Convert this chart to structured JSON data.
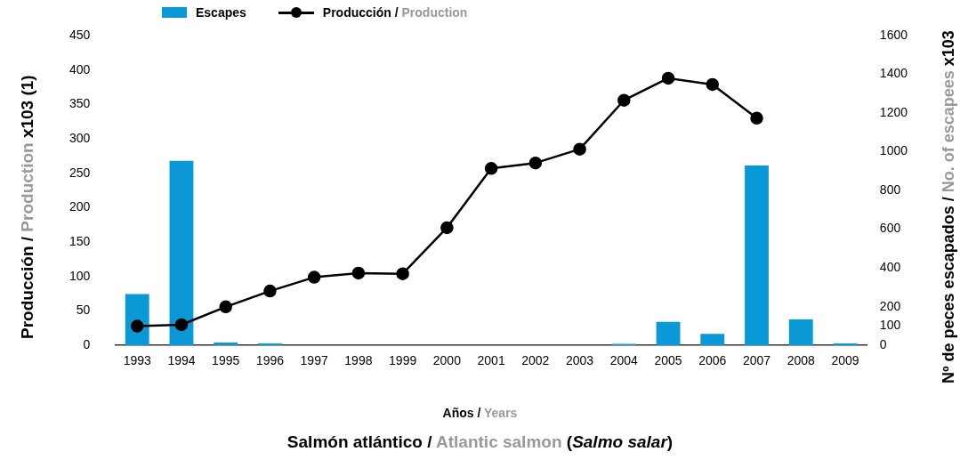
{
  "chart_data": {
    "type": "bar",
    "title": "Salmón atlántico / Atlantic salmon (Salmo salar)",
    "xlabel": "Años / Years",
    "ylabel": "Producción / Production x103 (1)",
    "y2label": "Nº de peces escapados / No. of escapees x103",
    "categories": [
      "1993",
      "1994",
      "1995",
      "1996",
      "1997",
      "1998",
      "1999",
      "2000",
      "2001",
      "2002",
      "2003",
      "2004",
      "2005",
      "2006",
      "2007",
      "2008",
      "2009"
    ],
    "series": [
      {
        "name": "Escapes",
        "axis": "y2",
        "color": "#0a98d6",
        "values": [
          265,
          953,
          15,
          10,
          0,
          0,
          0,
          0,
          0,
          0,
          0,
          8,
          122,
          60,
          929,
          134,
          10
        ]
      },
      {
        "name": "Producción / Production",
        "type": "line",
        "color": "#000000",
        "values": [
          28,
          30,
          56,
          79,
          99,
          105,
          104,
          171,
          257,
          265,
          285,
          356,
          388,
          379,
          330,
          null,
          null
        ]
      }
    ],
    "ylim": [
      0,
      450
    ],
    "yticks": [
      0,
      50,
      100,
      150,
      200,
      250,
      300,
      350,
      400,
      450
    ],
    "y2lim": [
      0,
      1600
    ],
    "y2ticks": [
      0,
      100,
      200,
      400,
      600,
      800,
      1000,
      1200,
      1400,
      1600
    ],
    "grid": false,
    "legend": "top",
    "marker": "circle",
    "line_style": "solid"
  }
}
